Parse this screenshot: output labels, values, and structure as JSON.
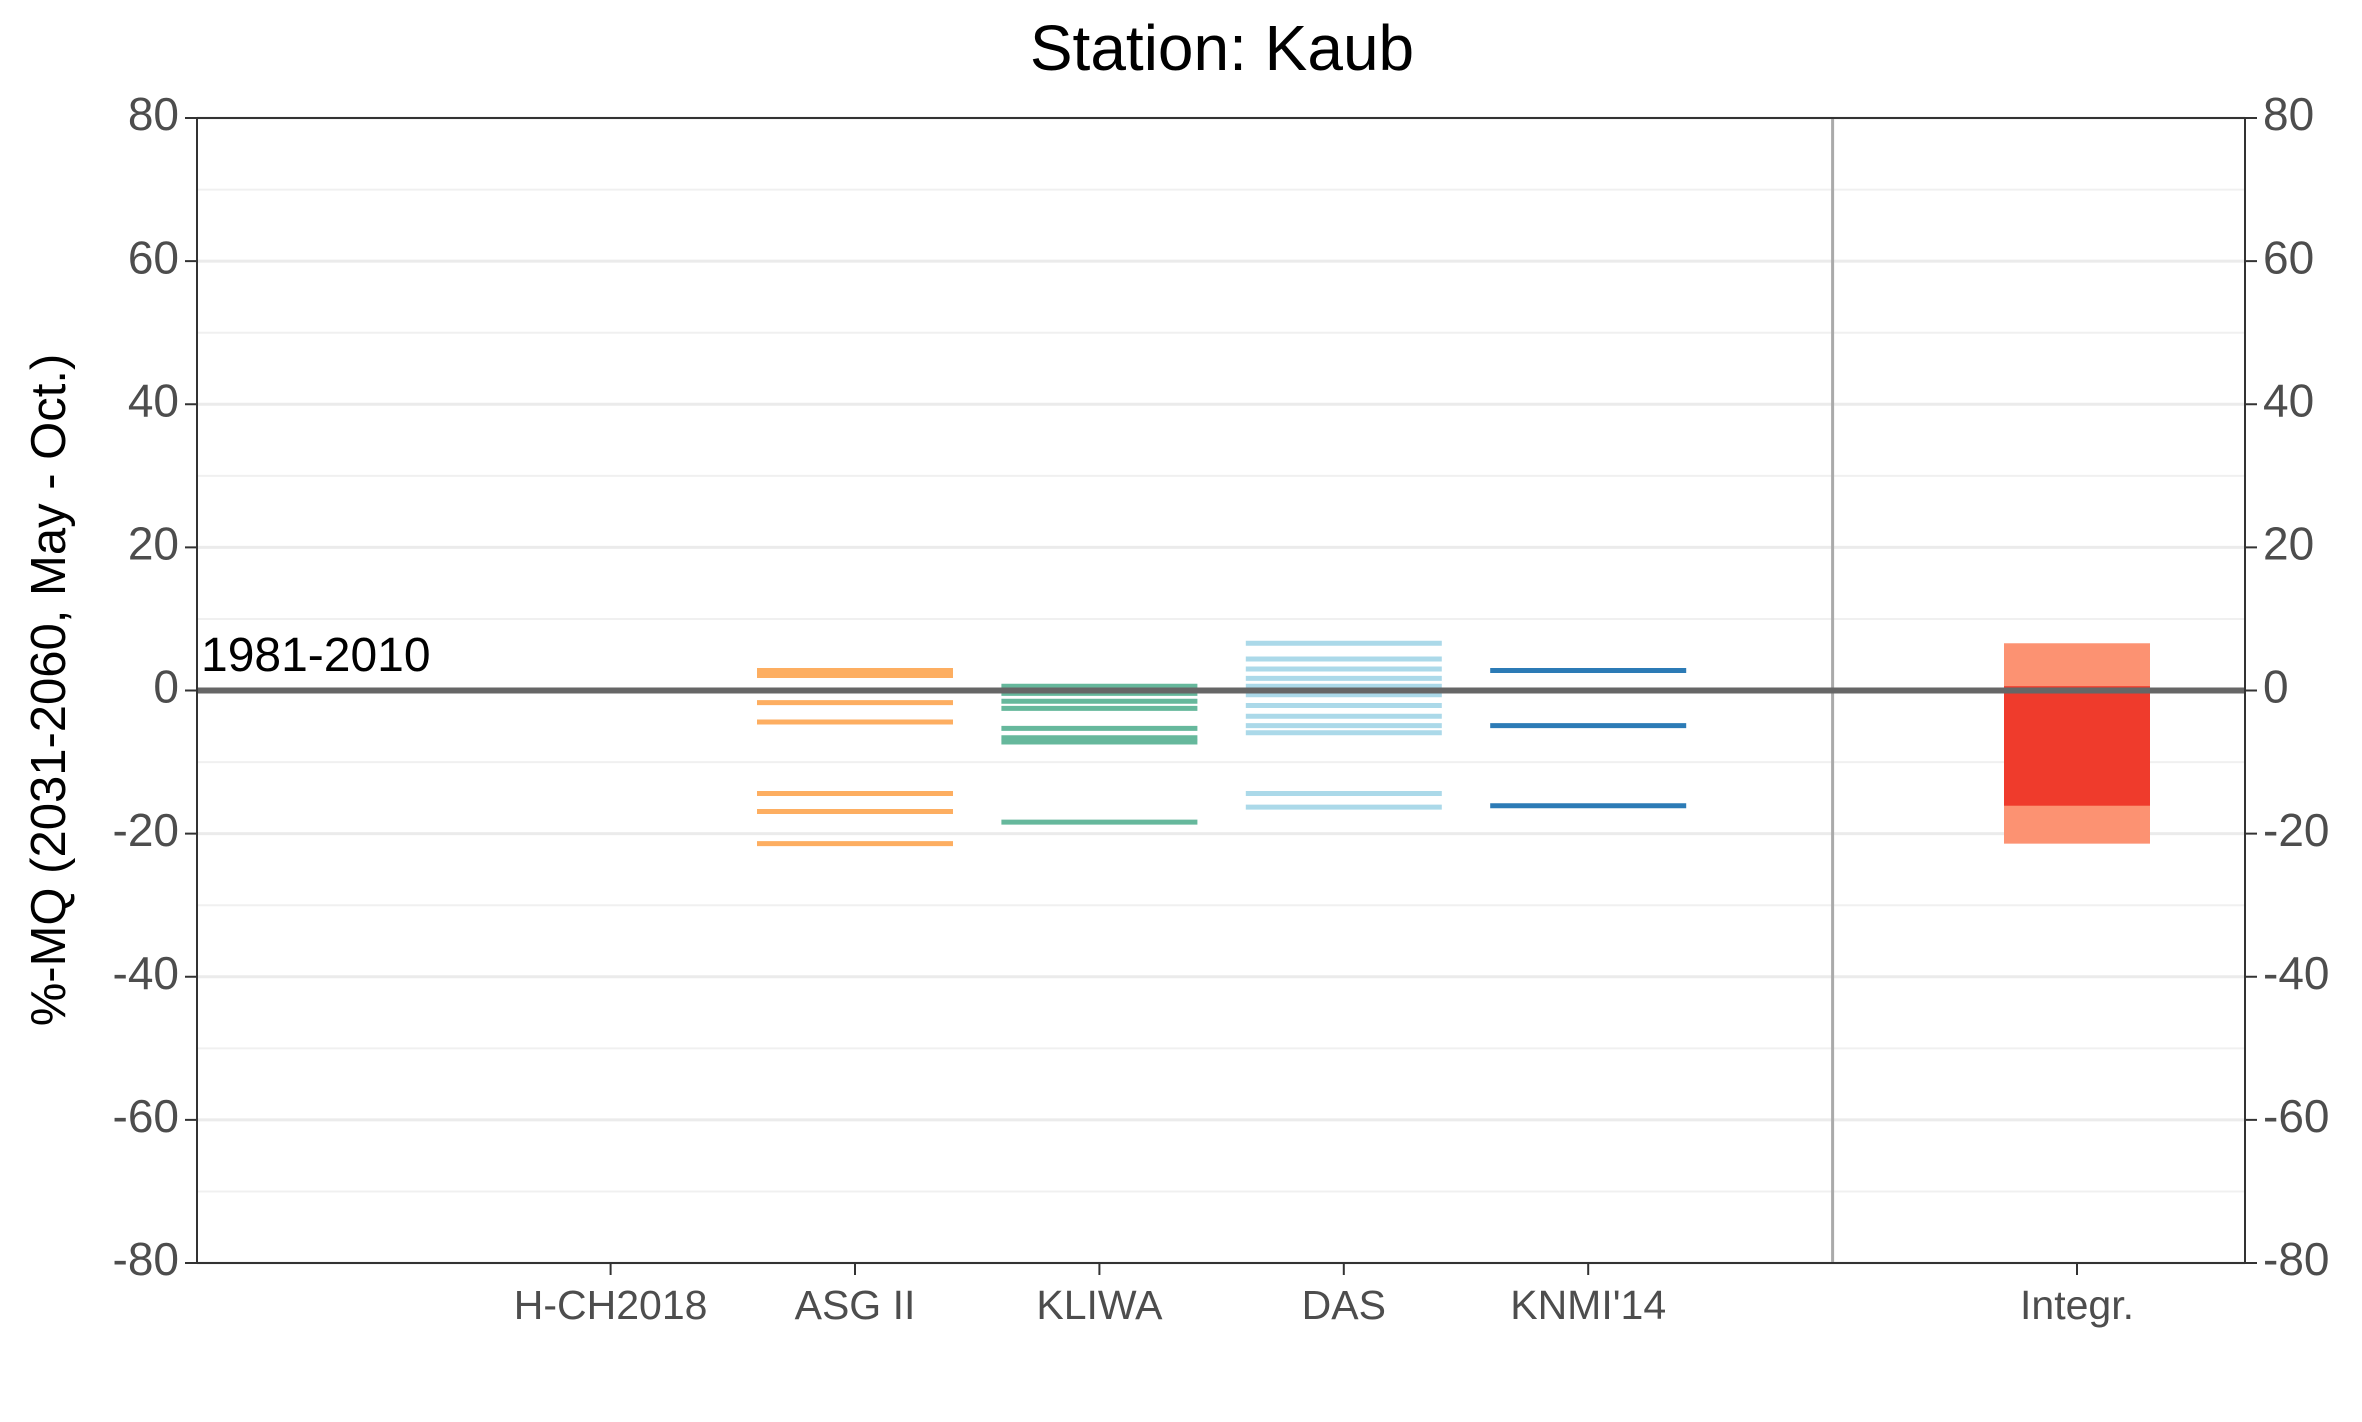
{
  "chart_data": {
    "type": "strip",
    "title": "Station: Kaub",
    "y_label": "%-MQ (2031-2060, May - Oct.)",
    "categories": [
      "H-CH2018",
      "ASG II",
      "KLIWA",
      "DAS",
      "KNMI'14",
      "Integr."
    ],
    "values": [
      [],
      [
        2.8,
        2.1,
        -1.7,
        -4.4,
        -14.4,
        -16.9,
        -21.4
      ],
      [
        0.6,
        -0.4,
        -1.5,
        -2.5,
        -5.3,
        -6.6,
        -7.2,
        -18.4
      ],
      [
        6.6,
        4.4,
        3.0,
        1.7,
        0.6,
        -0.6,
        -2.1,
        -3.6,
        -4.9,
        -5.9,
        -14.4,
        -16.3
      ],
      [
        2.8,
        -4.9,
        -16.1
      ]
    ],
    "colors": [
      "#fdae61",
      "#fdae61",
      "#66b89c",
      "#abd9e9",
      "#2c7bb6"
    ],
    "integrated": {
      "outer": [
        -21.4,
        6.6
      ],
      "inner": [
        -16.1,
        0.6
      ],
      "outer_color": "#fc9272",
      "inner_color": "#ef3b2c"
    },
    "reference_line": {
      "value": 0,
      "label": "1981-2010"
    },
    "ylim": [
      -80,
      80
    ],
    "yticks": [
      -80,
      -60,
      -40,
      -20,
      0,
      20,
      40,
      60,
      80
    ],
    "y2lim": [
      -80,
      80
    ],
    "y2ticks": [
      -80,
      -60,
      -40,
      -20,
      0,
      20,
      40,
      60,
      80
    ],
    "grid": true
  }
}
